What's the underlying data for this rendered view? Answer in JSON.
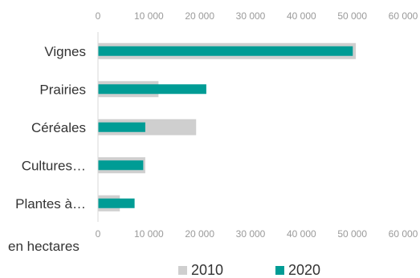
{
  "chart_data": {
    "type": "bar",
    "orientation": "horizontal",
    "categories": [
      "Vignes",
      "Prairies",
      "Céréales",
      "Cultures…",
      "Plantes à…"
    ],
    "series": [
      {
        "name": "2010",
        "color": "#cfcfcf",
        "values": [
          50700,
          11900,
          19300,
          9300,
          4300
        ]
      },
      {
        "name": "2020",
        "color": "#009c95",
        "values": [
          50100,
          21300,
          9300,
          8900,
          7200
        ]
      }
    ],
    "xticks": [
      0,
      10000,
      20000,
      30000,
      40000,
      50000,
      60000
    ],
    "xtick_labels": [
      "0",
      "10 000",
      "20 000",
      "30 000",
      "40 000",
      "50 000",
      "60 000"
    ],
    "xlim": [
      0,
      60000
    ],
    "unit_label": "en hectares",
    "legend_position": "bottom",
    "grid": false
  }
}
